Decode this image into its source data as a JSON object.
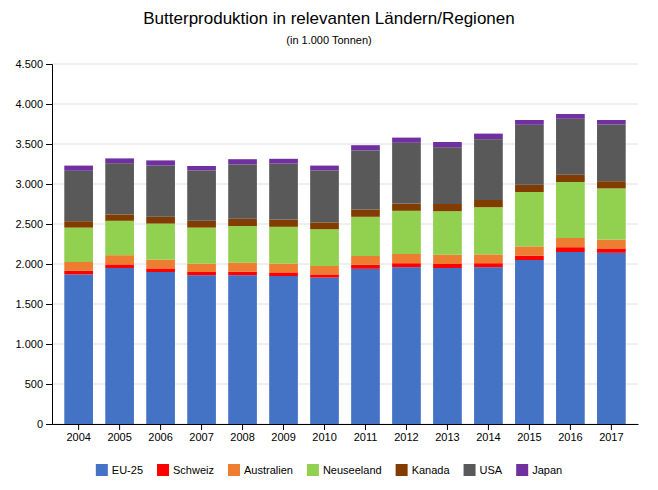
{
  "chart_data": {
    "type": "bar",
    "title": "Butterproduktion in relevanten Ländern/Regionen",
    "subtitle": "(in 1.000 Tonnen)",
    "categories": [
      "2004",
      "2005",
      "2006",
      "2007",
      "2008",
      "2009",
      "2010",
      "2011",
      "2012",
      "2013",
      "2014",
      "2015",
      "2016",
      "2017"
    ],
    "series": [
      {
        "name": "EU-25",
        "color": "#4472C4",
        "values": [
          1870,
          1950,
          1900,
          1860,
          1860,
          1850,
          1830,
          1940,
          1960,
          1950,
          1960,
          2050,
          2150,
          2140
        ]
      },
      {
        "name": "Schweiz",
        "color": "#FF0000",
        "values": [
          45,
          45,
          45,
          40,
          45,
          45,
          40,
          50,
          50,
          50,
          50,
          55,
          60,
          55
        ]
      },
      {
        "name": "Australien",
        "color": "#ED7D31",
        "values": [
          110,
          115,
          110,
          105,
          110,
          110,
          105,
          110,
          115,
          115,
          110,
          115,
          115,
          110
        ]
      },
      {
        "name": "Neuseeland",
        "color": "#92D050",
        "values": [
          430,
          430,
          450,
          450,
          460,
          460,
          460,
          490,
          540,
          545,
          590,
          680,
          700,
          640
        ]
      },
      {
        "name": "Kanada",
        "color": "#833C00",
        "values": [
          80,
          80,
          85,
          85,
          90,
          90,
          85,
          90,
          90,
          90,
          90,
          90,
          90,
          90
        ]
      },
      {
        "name": "USA",
        "color": "#595959",
        "values": [
          630,
          640,
          640,
          630,
          680,
          700,
          650,
          740,
          760,
          710,
          760,
          750,
          700,
          710
        ]
      },
      {
        "name": "Japan",
        "color": "#7030A0",
        "values": [
          65,
          60,
          65,
          55,
          65,
          60,
          60,
          65,
          65,
          65,
          70,
          60,
          60,
          55
        ]
      }
    ],
    "ylim": [
      0,
      4500
    ],
    "yticks": [
      0,
      500,
      {
        "value": 1000,
        "label": "1.000"
      },
      {
        "value": 1500,
        "label": "1.500"
      },
      {
        "value": 2000,
        "label": "2.000"
      },
      {
        "value": 2500,
        "label": "2.500"
      },
      {
        "value": 3000,
        "label": "3.000"
      },
      {
        "value": 3500,
        "label": "3.500"
      },
      {
        "value": 4000,
        "label": "4.000"
      },
      {
        "value": 4500,
        "label": "4.500"
      }
    ],
    "stacked": true,
    "grid": true,
    "legend": "bottom"
  }
}
